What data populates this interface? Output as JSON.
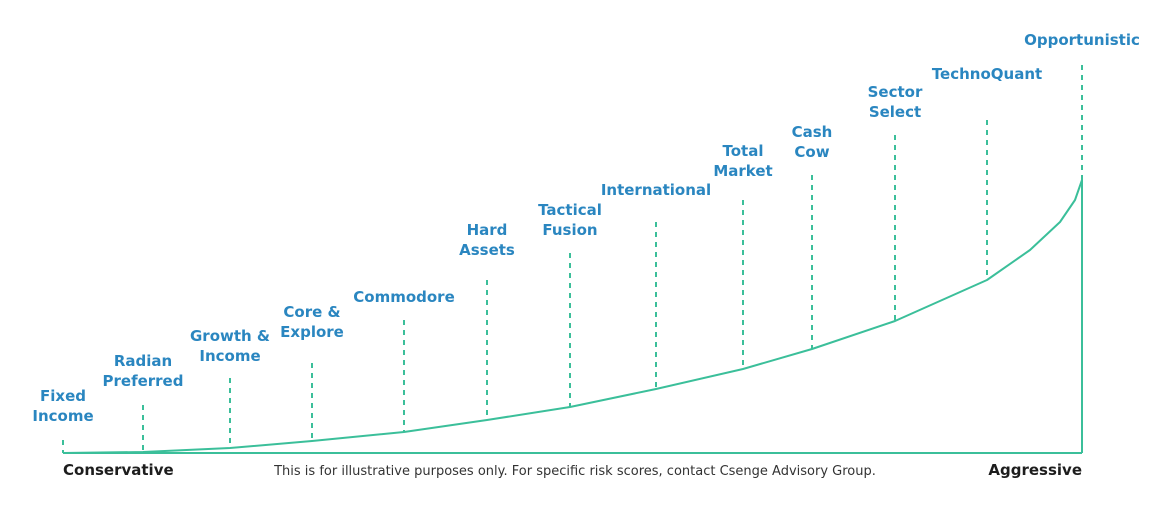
{
  "diagram": {
    "levels": [
      [
        "Fixed",
        "Income"
      ],
      [
        "Radian",
        "Preferred"
      ],
      [
        "Growth &",
        "Income"
      ],
      [
        "Core &",
        "Explore"
      ],
      [
        "Commodore"
      ],
      [
        "Hard",
        "Assets"
      ],
      [
        "Tactical",
        "Fusion"
      ],
      [
        "International"
      ],
      [
        "Total",
        "Market"
      ],
      [
        "Cash",
        "Cow"
      ],
      [
        "Sector",
        "Select"
      ],
      [
        "TechnoQuant"
      ],
      [
        "Opportunistic"
      ]
    ],
    "left_label": "Conservative",
    "right_label": "Aggressive",
    "note": "This is for illustrative purposes only. For specific risk scores, contact Csenge Advisory Group."
  }
}
